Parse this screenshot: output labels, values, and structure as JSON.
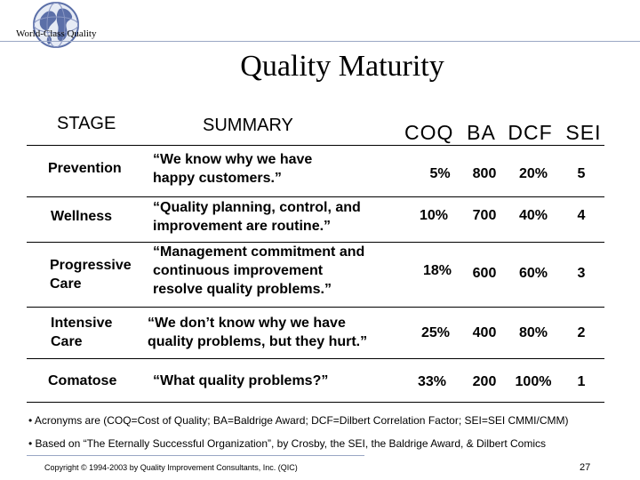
{
  "header": {
    "brand": "World-Class Quality",
    "title": "Quality Maturity"
  },
  "table": {
    "col_stage": "STAGE",
    "col_summary": "SUMMARY",
    "col_metrics": "COQ  BA  DCF  SEI",
    "rows": [
      {
        "stage": [
          "Prevention"
        ],
        "summary": [
          "“We know why we have",
          "happy customers.”"
        ],
        "coq": "5%",
        "ba": "800",
        "dcf": "20%",
        "sei": "5"
      },
      {
        "stage": [
          "Wellness"
        ],
        "summary": [
          "“Quality planning, control, and",
          "improvement are routine.”"
        ],
        "coq": "10%",
        "ba": "700",
        "dcf": "40%",
        "sei": "4"
      },
      {
        "stage": [
          "Progressive",
          "Care"
        ],
        "summary": [
          "“Management commitment and",
          "continuous improvement",
          "resolve quality problems.”"
        ],
        "coq": "18%",
        "ba": "600",
        "dcf": "60%",
        "sei": "3"
      },
      {
        "stage": [
          "Intensive",
          "Care"
        ],
        "summary": [
          "“We don’t know why we have",
          "quality problems, but they hurt.”"
        ],
        "coq": "25%",
        "ba": "400",
        "dcf": "80%",
        "sei": "2"
      },
      {
        "stage": [
          "Comatose"
        ],
        "summary": [
          "“What quality problems?”"
        ],
        "coq": "33%",
        "ba": "200",
        "dcf": "100%",
        "sei": "1"
      }
    ]
  },
  "notes": [
    "• Acronyms are (COQ=Cost of Quality; BA=Baldrige Award; DCF=Dilbert Correlation Factor; SEI=SEI CMMI/CMM)",
    "• Based on “The Eternally Successful Organization”, by Crosby, the SEI, the Baldrige Award, & Dilbert Comics"
  ],
  "footer": {
    "copyright": "Copyright © 1994-2003 by Quality Improvement Consultants, Inc. (QIC)",
    "page": "27"
  },
  "icons": {
    "logo": "globe-icon"
  },
  "colors": {
    "rule": "#9aa7c4",
    "globe_land": "#5b6fa8"
  }
}
